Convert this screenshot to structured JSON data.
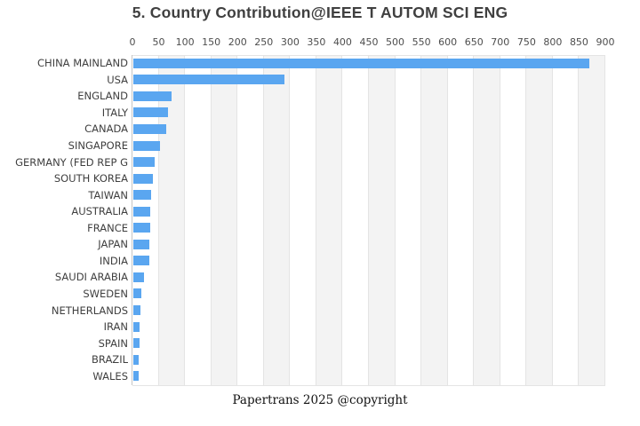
{
  "title": "5. Country Contribution@IEEE T AUTOM SCI ENG",
  "footer": "Papertrans 2025 @copyright",
  "colors": {
    "bar": "#5aa6f0",
    "stripe": "#f3f3f3",
    "gridline": "#e4e4e4",
    "axis_line": "#c4c4c4",
    "title_text": "#404040",
    "label_text": "#3f3f3f"
  },
  "chart_data": {
    "type": "bar",
    "orientation": "horizontal",
    "title": "5. Country Contribution@IEEE T AUTOM SCI ENG",
    "xlabel": "",
    "ylabel": "",
    "axis_position": "top",
    "sort": "descending",
    "xlim": [
      0,
      900
    ],
    "tick_step": 50,
    "x_ticks": [
      0,
      50,
      100,
      150,
      200,
      250,
      300,
      350,
      400,
      450,
      500,
      550,
      600,
      650,
      700,
      750,
      800,
      850,
      900
    ],
    "grid": "vertical-stripes",
    "legend": "none",
    "categories": [
      "CHINA MAINLAND",
      "USA",
      "ENGLAND",
      "ITALY",
      "CANADA",
      "SINGAPORE",
      "GERMANY (FED REP G",
      "SOUTH KOREA",
      "TAIWAN",
      "AUSTRALIA",
      "FRANCE",
      "JAPAN",
      "INDIA",
      "SAUDI ARABIA",
      "SWEDEN",
      "NETHERLANDS",
      "IRAN",
      "SPAIN",
      "BRAZIL",
      "WALES"
    ],
    "values": [
      868,
      287,
      73,
      66,
      62,
      51,
      41,
      37,
      34,
      32,
      32,
      30,
      30,
      20,
      16,
      13,
      11,
      11,
      10,
      10
    ]
  }
}
